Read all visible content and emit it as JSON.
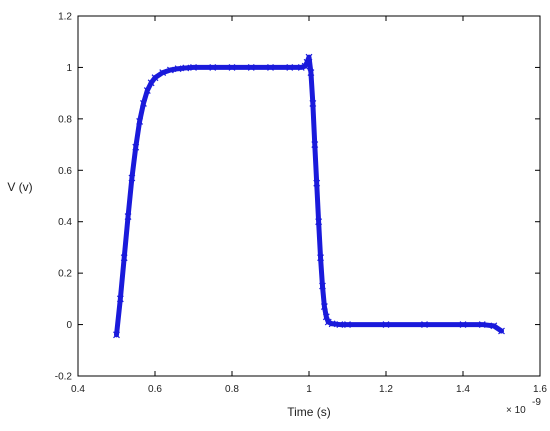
{
  "chart_data": {
    "type": "line",
    "xlabel": "Time (s)",
    "ylabel": "V (v)",
    "x_multiplier_base": "× 10",
    "x_multiplier_exponent": "-9",
    "xlim": [
      0.4,
      1.6
    ],
    "ylim": [
      -0.2,
      1.2
    ],
    "x_ticks": [
      "0.4",
      "0.6",
      "0.8",
      "1",
      "1.2",
      "1.4",
      "1.6"
    ],
    "y_ticks": [
      "-0.2",
      "0",
      "0.2",
      "0.4",
      "0.6",
      "0.8",
      "1",
      "1.2"
    ],
    "grid": false,
    "legend": "none",
    "marker": "x",
    "series": [
      {
        "color": "#1a1adb",
        "x": [
          0.5,
          0.51,
          0.52,
          0.53,
          0.54,
          0.55,
          0.56,
          0.57,
          0.58,
          0.59,
          0.6,
          0.62,
          0.64,
          0.66,
          0.68,
          0.7,
          0.75,
          0.8,
          0.85,
          0.9,
          0.95,
          0.98,
          0.99,
          0.995,
          1.0,
          1.005,
          1.01,
          1.015,
          1.02,
          1.025,
          1.03,
          1.035,
          1.04,
          1.045,
          1.05,
          1.06,
          1.08,
          1.1,
          1.2,
          1.3,
          1.4,
          1.45,
          1.48,
          1.5
        ],
        "y": [
          -0.04,
          0.1,
          0.26,
          0.42,
          0.57,
          0.69,
          0.79,
          0.86,
          0.91,
          0.94,
          0.96,
          0.98,
          0.99,
          0.995,
          0.998,
          1.0,
          1.0,
          1.0,
          1.0,
          1.0,
          1.0,
          1.0,
          1.005,
          1.02,
          1.04,
          0.98,
          0.86,
          0.7,
          0.55,
          0.4,
          0.26,
          0.15,
          0.07,
          0.03,
          0.01,
          0.003,
          0.0,
          0.0,
          0.0,
          0.0,
          0.0,
          0.0,
          -0.005,
          -0.025
        ]
      }
    ]
  }
}
